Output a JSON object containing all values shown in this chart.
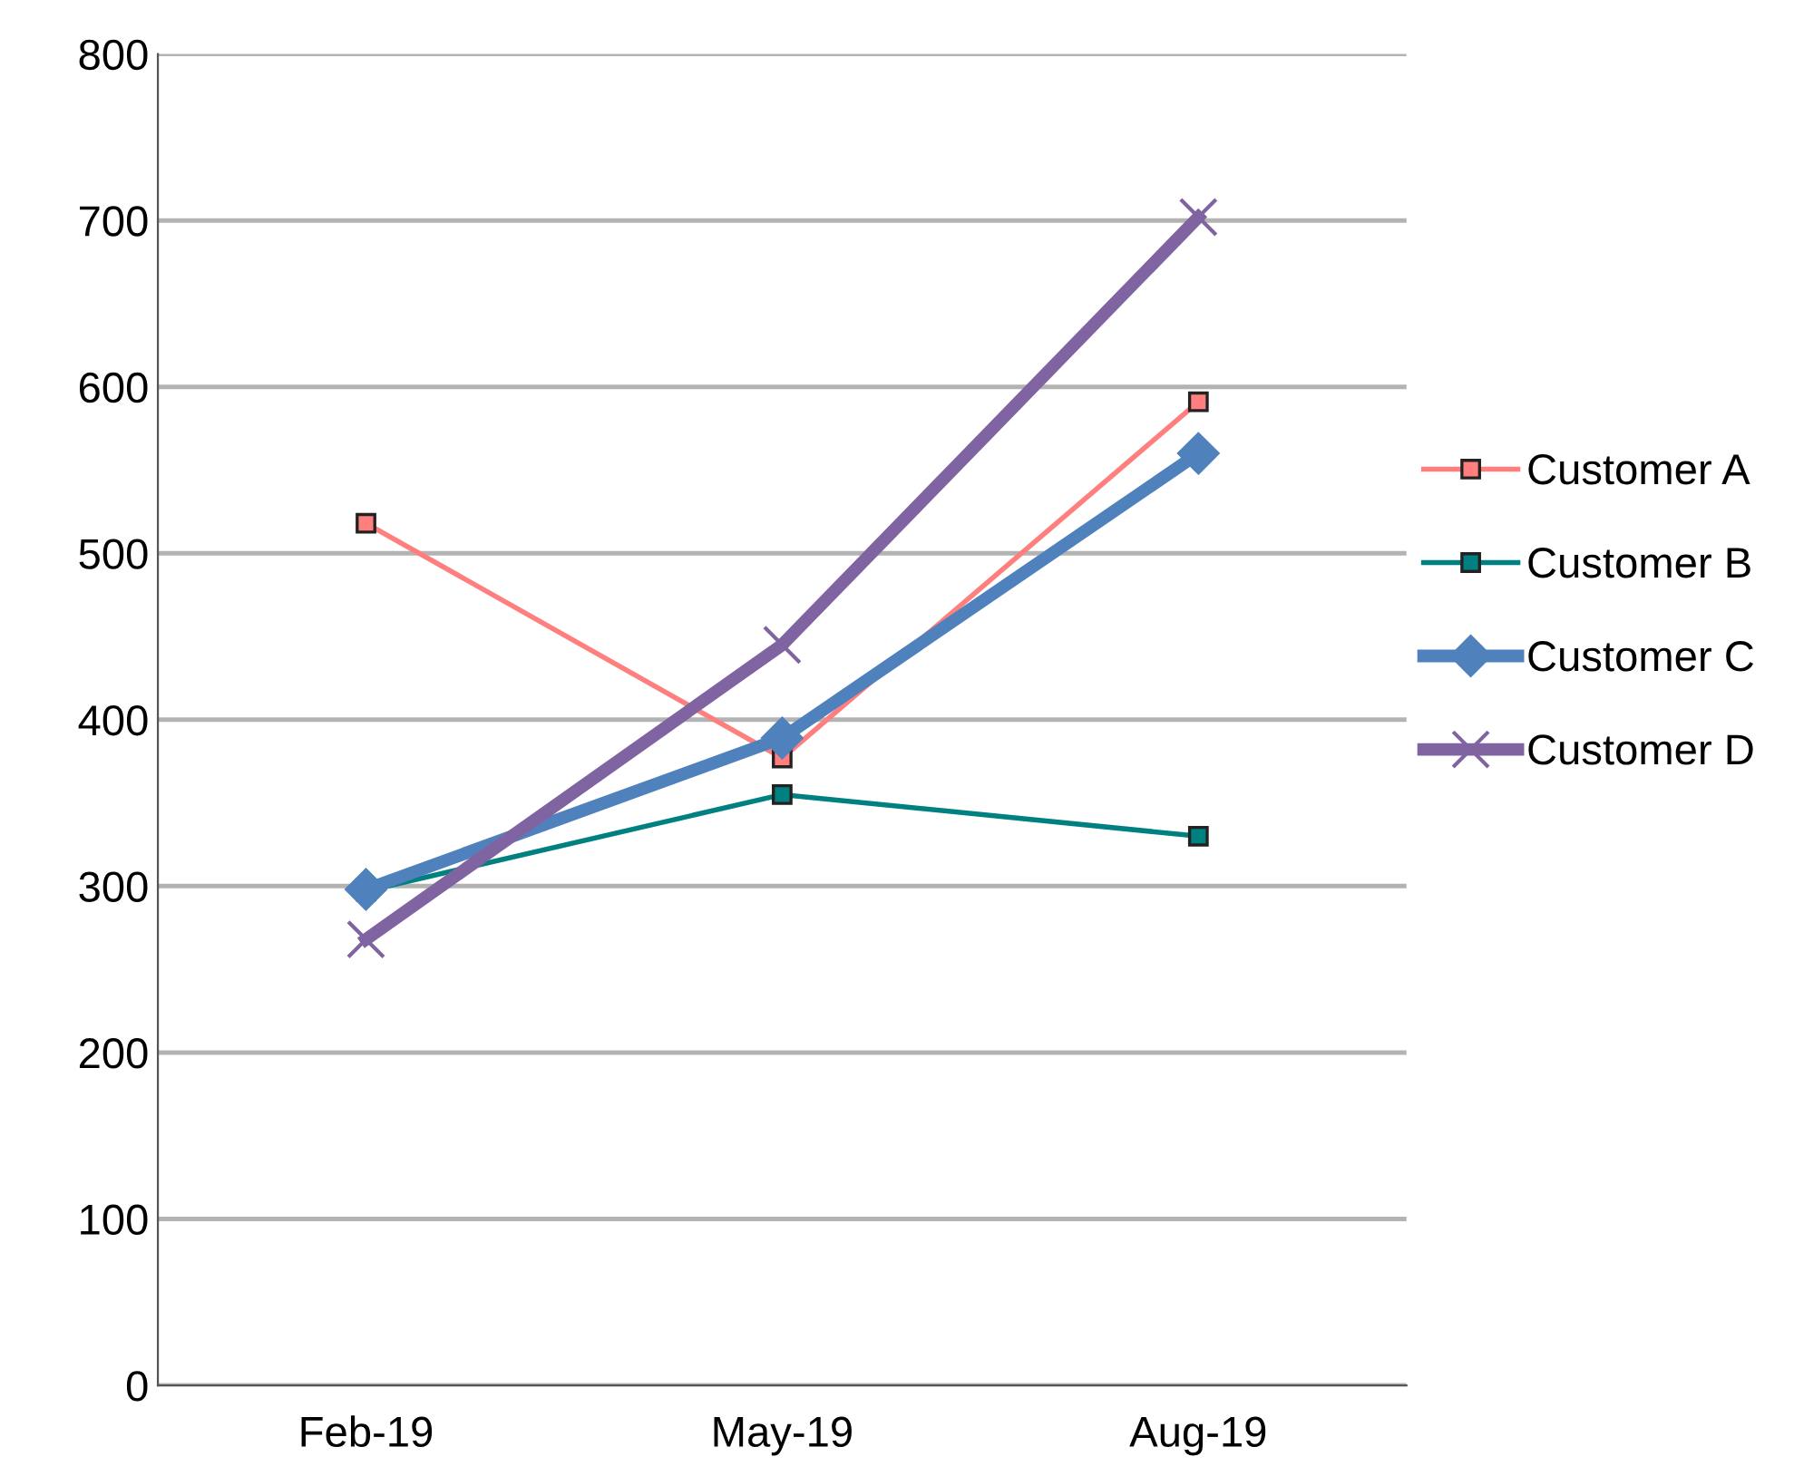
{
  "chart_data": {
    "type": "line",
    "categories": [
      "Feb-19",
      "May-19",
      "Aug-19"
    ],
    "series": [
      {
        "name": "Customer A",
        "color": "#ff7f7f",
        "marker": "square",
        "values": [
          518,
          377,
          591
        ]
      },
      {
        "name": "Customer B",
        "color": "#008080",
        "marker": "square",
        "values": [
          297,
          355,
          330
        ]
      },
      {
        "name": "Customer C",
        "color": "#4f81bd",
        "marker": "diamond",
        "values": [
          298,
          389,
          560
        ]
      },
      {
        "name": "Customer D",
        "color": "#8064a2",
        "marker": "cross",
        "values": [
          268,
          445,
          702
        ]
      }
    ],
    "ylim": [
      0,
      800
    ],
    "yticks": [
      0,
      100,
      200,
      300,
      400,
      500,
      600,
      700,
      800
    ],
    "grid": "y",
    "legend": "right",
    "line_style": "solid"
  }
}
